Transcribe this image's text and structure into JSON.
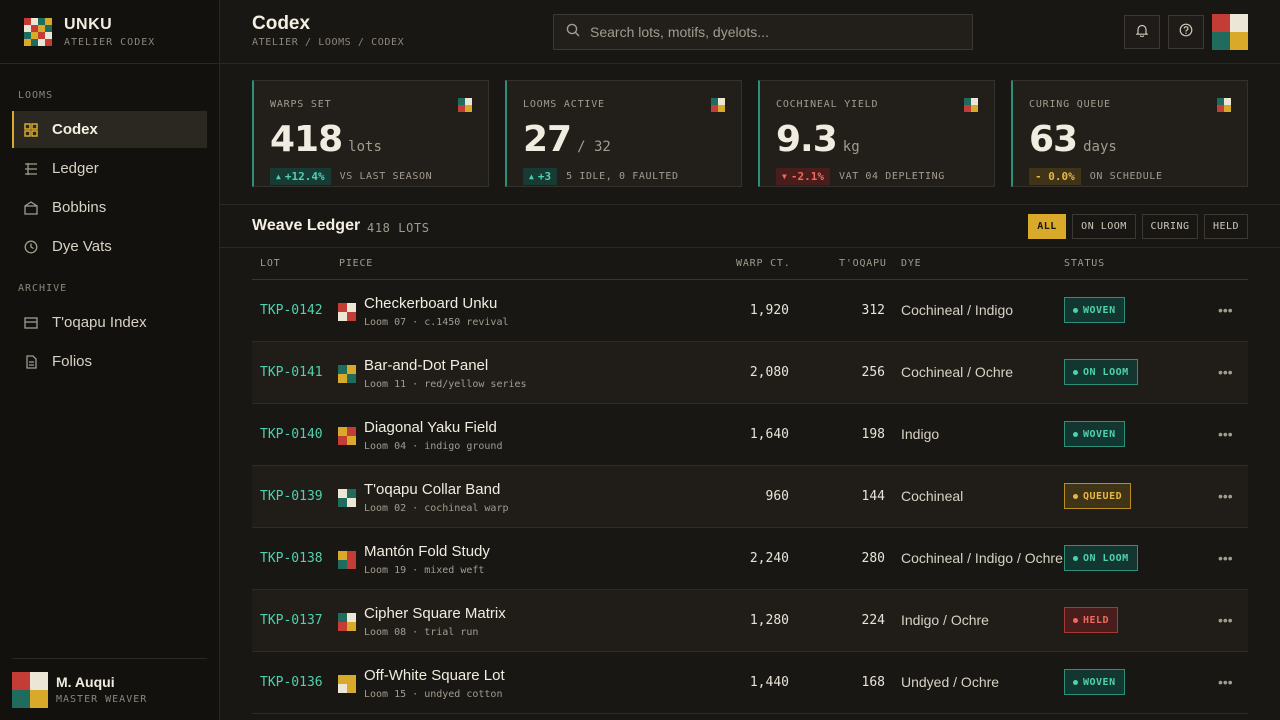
{
  "brand": {
    "title": "UNKU",
    "subtitle": "ATELIER CODEX"
  },
  "sidebar": {
    "sections": [
      {
        "label": "LOOMS",
        "items": [
          {
            "label": "Codex",
            "icon": "grid-icon",
            "active": true
          },
          {
            "label": "Ledger",
            "icon": "ledger-icon"
          },
          {
            "label": "Bobbins",
            "icon": "bobbin-icon"
          },
          {
            "label": "Dye Vats",
            "icon": "clock-icon"
          }
        ]
      },
      {
        "label": "ARCHIVE",
        "items": [
          {
            "label": "T'oqapu Index",
            "icon": "index-icon"
          },
          {
            "label": "Folios",
            "icon": "folio-icon"
          }
        ]
      }
    ]
  },
  "user": {
    "name": "M. Auqui",
    "role": "MASTER WEAVER"
  },
  "header": {
    "title": "Codex",
    "breadcrumb": "ATELIER / LOOMS / CODEX"
  },
  "search": {
    "placeholder": "Search lots, motifs, dyelots..."
  },
  "kpis": [
    {
      "label": "WARPS SET",
      "value": "418",
      "unit": "lots",
      "delta": "+12.4%",
      "delta_dir": "up",
      "note": "VS LAST SEASON"
    },
    {
      "label": "LOOMS ACTIVE",
      "value": "27",
      "unit": "/ 32",
      "delta": "+3",
      "delta_dir": "up",
      "note": "5 IDLE, 0 FAULTED"
    },
    {
      "label": "COCHINEAL YIELD",
      "value": "9.3",
      "unit": "kg",
      "delta": "-2.1%",
      "delta_dir": "down",
      "note": "VAT 04 DEPLETING"
    },
    {
      "label": "CURING QUEUE",
      "value": "63",
      "unit": "days",
      "delta": "- 0.0%",
      "delta_dir": "flat",
      "note": "ON SCHEDULE"
    }
  ],
  "ledger": {
    "title": "Weave Ledger",
    "count": "418 LOTS",
    "filters": [
      "ALL",
      "ON LOOM",
      "CURING",
      "HELD"
    ],
    "active_filter": "ALL",
    "columns": [
      "LOT",
      "PIECE",
      "WARP CT.",
      "T'OQAPU",
      "DYE",
      "STATUS"
    ],
    "rows": [
      {
        "lot": "TKP-0142",
        "name": "Checkerboard Unku",
        "sub": "Loom 07 · c.1450 revival",
        "warp": "1,920",
        "toqapu": "312",
        "dye": "Cochineal / Indigo",
        "status": "WOVEN",
        "status_kind": "woven",
        "swatch": [
          "red",
          "cream",
          "cream",
          "red"
        ]
      },
      {
        "lot": "TKP-0141",
        "name": "Bar-and-Dot Panel",
        "sub": "Loom 11 · red/yellow series",
        "warp": "2,080",
        "toqapu": "256",
        "dye": "Cochineal / Ochre",
        "status": "ON LOOM",
        "status_kind": "loom",
        "swatch": [
          "teal",
          "gold",
          "gold",
          "teal"
        ]
      },
      {
        "lot": "TKP-0140",
        "name": "Diagonal Yaku Field",
        "sub": "Loom 04 · indigo ground",
        "warp": "1,640",
        "toqapu": "198",
        "dye": "Indigo",
        "status": "WOVEN",
        "status_kind": "woven",
        "swatch": [
          "gold",
          "red",
          "red",
          "gold"
        ]
      },
      {
        "lot": "TKP-0139",
        "name": "T'oqapu Collar Band",
        "sub": "Loom 02 · cochineal warp",
        "warp": "960",
        "toqapu": "144",
        "dye": "Cochineal",
        "status": "QUEUED",
        "status_kind": "queued",
        "swatch": [
          "cream",
          "teal",
          "teal",
          "cream"
        ]
      },
      {
        "lot": "TKP-0138",
        "name": "Mantón Fold Study",
        "sub": "Loom 19 · mixed weft",
        "warp": "2,240",
        "toqapu": "280",
        "dye": "Cochineal / Indigo / Ochre",
        "status": "ON LOOM",
        "status_kind": "loom",
        "swatch": [
          "gold",
          "red",
          "teal",
          "red"
        ]
      },
      {
        "lot": "TKP-0137",
        "name": "Cipher Square Matrix",
        "sub": "Loom 08 · trial run",
        "warp": "1,280",
        "toqapu": "224",
        "dye": "Indigo / Ochre",
        "status": "HELD",
        "status_kind": "held",
        "swatch": [
          "teal",
          "cream",
          "red",
          "gold"
        ]
      },
      {
        "lot": "TKP-0136",
        "name": "Off-White Square Lot",
        "sub": "Loom 15 · undyed cotton",
        "warp": "1,440",
        "toqapu": "168",
        "dye": "Undyed / Ochre",
        "status": "WOVEN",
        "status_kind": "woven",
        "swatch": [
          "gold",
          "gold",
          "cream",
          "gold"
        ]
      }
    ]
  },
  "colors": {
    "accent": "#d9a92a",
    "teal": "#4fd1b0",
    "red": "#c33c35",
    "background": "#191714"
  }
}
